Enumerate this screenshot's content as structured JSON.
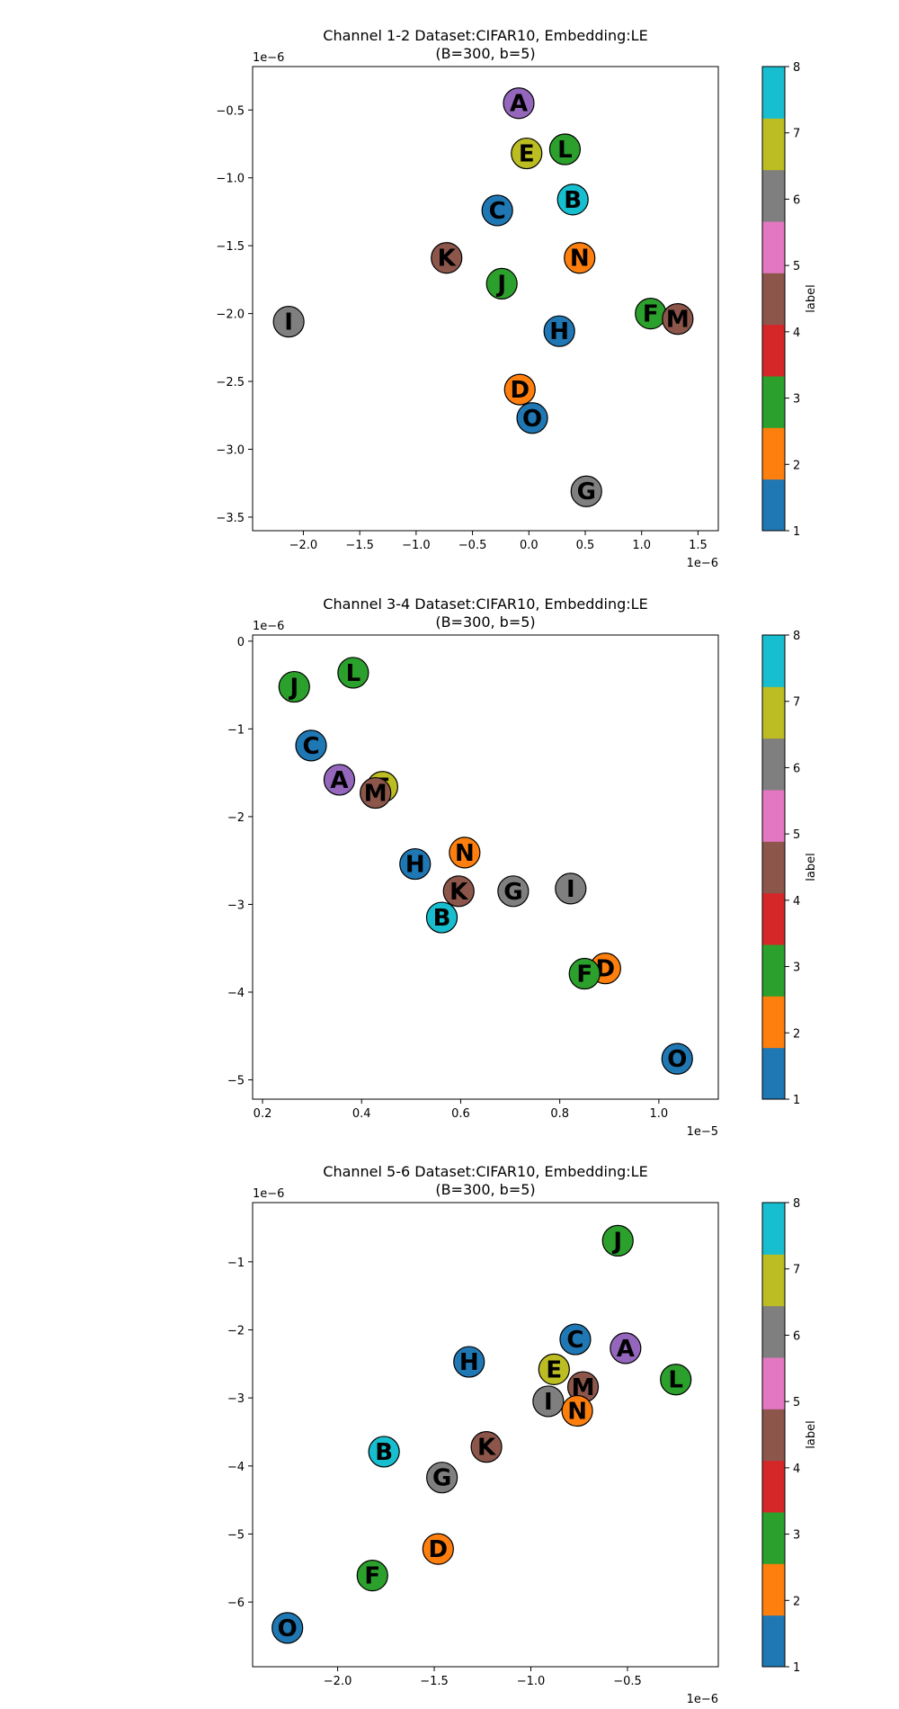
{
  "colorbar": {
    "label": "label",
    "ticks": [
      "1",
      "2",
      "3",
      "4",
      "5",
      "6",
      "7",
      "8"
    ],
    "colors": [
      "#1f77b4",
      "#ff7f0e",
      "#2ca02c",
      "#d62728",
      "#8c564b",
      "#e377c2",
      "#7f7f7f",
      "#bcbd22",
      "#17becf"
    ]
  },
  "chart_data": [
    {
      "type": "scatter",
      "title": "Channel 1-2 Dataset:CIFAR10, Embedding:LE",
      "subtitle": "(B=300, b=5)",
      "xlabel": "",
      "ylabel": "",
      "x_offset_text": "1e−6",
      "y_offset_text": "1e−6",
      "xlim": [
        -2.45,
        1.68
      ],
      "ylim": [
        -3.6,
        -0.18
      ],
      "xticks": [
        -2.0,
        -1.5,
        -1.0,
        -0.5,
        0.0,
        0.5,
        1.0,
        1.5
      ],
      "xtick_labels": [
        "−2.0",
        "−1.5",
        "−1.0",
        "−0.5",
        "0.0",
        "0.5",
        "1.0",
        "1.5"
      ],
      "yticks": [
        -0.5,
        -1.0,
        -1.5,
        -2.0,
        -2.5,
        -3.0,
        -3.5
      ],
      "ytick_labels": [
        "−0.5",
        "−1.0",
        "−1.5",
        "−2.0",
        "−2.5",
        "−3.0",
        "−3.5"
      ],
      "grid": false,
      "points": [
        {
          "label": "A",
          "x": -0.09,
          "y": -0.45,
          "color": "#9467bd"
        },
        {
          "label": "E",
          "x": -0.02,
          "y": -0.82,
          "color": "#bcbd22"
        },
        {
          "label": "L",
          "x": 0.32,
          "y": -0.79,
          "color": "#2ca02c"
        },
        {
          "label": "B",
          "x": 0.39,
          "y": -1.16,
          "color": "#17becf"
        },
        {
          "label": "C",
          "x": -0.28,
          "y": -1.24,
          "color": "#1f77b4"
        },
        {
          "label": "K",
          "x": -0.73,
          "y": -1.59,
          "color": "#8c564b"
        },
        {
          "label": "N",
          "x": 0.45,
          "y": -1.59,
          "color": "#ff7f0e"
        },
        {
          "label": "J",
          "x": -0.24,
          "y": -1.78,
          "color": "#2ca02c"
        },
        {
          "label": "F",
          "x": 1.08,
          "y": -2.0,
          "color": "#2ca02c"
        },
        {
          "label": "M",
          "x": 1.32,
          "y": -2.04,
          "color": "#8c564b"
        },
        {
          "label": "I",
          "x": -2.13,
          "y": -2.06,
          "color": "#7f7f7f"
        },
        {
          "label": "H",
          "x": 0.27,
          "y": -2.13,
          "color": "#1f77b4"
        },
        {
          "label": "D",
          "x": -0.08,
          "y": -2.56,
          "color": "#ff7f0e"
        },
        {
          "label": "O",
          "x": 0.03,
          "y": -2.77,
          "color": "#1f77b4"
        },
        {
          "label": "G",
          "x": 0.51,
          "y": -3.31,
          "color": "#7f7f7f"
        }
      ]
    },
    {
      "type": "scatter",
      "title": "Channel 3-4 Dataset:CIFAR10, Embedding:LE",
      "subtitle": "(B=300, b=5)",
      "xlabel": "",
      "ylabel": "",
      "x_offset_text": "1e−5",
      "y_offset_text": "1e−6",
      "xlim": [
        0.18,
        1.12
      ],
      "ylim": [
        -5.22,
        0.07
      ],
      "xticks": [
        0.2,
        0.4,
        0.6,
        0.8,
        1.0
      ],
      "xtick_labels": [
        "0.2",
        "0.4",
        "0.6",
        "0.8",
        "1.0"
      ],
      "yticks": [
        0,
        -1,
        -2,
        -3,
        -4,
        -5
      ],
      "ytick_labels": [
        "0",
        "−1",
        "−2",
        "−3",
        "−4",
        "−5"
      ],
      "grid": false,
      "points": [
        {
          "label": "L",
          "x": 0.383,
          "y": -0.36,
          "color": "#2ca02c"
        },
        {
          "label": "J",
          "x": 0.264,
          "y": -0.52,
          "color": "#2ca02c"
        },
        {
          "label": "C",
          "x": 0.298,
          "y": -1.19,
          "color": "#1f77b4"
        },
        {
          "label": "E",
          "x": 0.442,
          "y": -1.66,
          "color": "#bcbd22"
        },
        {
          "label": "A",
          "x": 0.355,
          "y": -1.58,
          "color": "#9467bd"
        },
        {
          "label": "M",
          "x": 0.428,
          "y": -1.73,
          "color": "#8c564b"
        },
        {
          "label": "N",
          "x": 0.608,
          "y": -2.41,
          "color": "#ff7f0e"
        },
        {
          "label": "H",
          "x": 0.508,
          "y": -2.54,
          "color": "#1f77b4"
        },
        {
          "label": "I",
          "x": 0.822,
          "y": -2.82,
          "color": "#7f7f7f"
        },
        {
          "label": "K",
          "x": 0.596,
          "y": -2.85,
          "color": "#8c564b"
        },
        {
          "label": "G",
          "x": 0.706,
          "y": -2.85,
          "color": "#7f7f7f"
        },
        {
          "label": "B",
          "x": 0.562,
          "y": -3.15,
          "color": "#17becf"
        },
        {
          "label": "D",
          "x": 0.892,
          "y": -3.73,
          "color": "#ff7f0e"
        },
        {
          "label": "F",
          "x": 0.85,
          "y": -3.79,
          "color": "#2ca02c"
        },
        {
          "label": "O",
          "x": 1.037,
          "y": -4.76,
          "color": "#1f77b4"
        }
      ]
    },
    {
      "type": "scatter",
      "title": "Channel 5-6 Dataset:CIFAR10, Embedding:LE",
      "subtitle": "(B=300, b=5)",
      "xlabel": "",
      "ylabel": "",
      "x_offset_text": "1e−6",
      "y_offset_text": "1e−6",
      "xlim": [
        -2.44,
        -0.03
      ],
      "ylim": [
        -6.95,
        -0.13
      ],
      "xticks": [
        -2.0,
        -1.5,
        -1.0,
        -0.5
      ],
      "xtick_labels": [
        "−2.0",
        "−1.5",
        "−1.0",
        "−0.5"
      ],
      "yticks": [
        -1,
        -2,
        -3,
        -4,
        -5,
        -6
      ],
      "ytick_labels": [
        "−1",
        "−2",
        "−3",
        "−4",
        "−5",
        "−6"
      ],
      "grid": false,
      "points": [
        {
          "label": "J",
          "x": -0.55,
          "y": -0.69,
          "color": "#2ca02c"
        },
        {
          "label": "C",
          "x": -0.77,
          "y": -2.14,
          "color": "#1f77b4"
        },
        {
          "label": "A",
          "x": -0.51,
          "y": -2.27,
          "color": "#9467bd"
        },
        {
          "label": "H",
          "x": -1.32,
          "y": -2.47,
          "color": "#1f77b4"
        },
        {
          "label": "E",
          "x": -0.88,
          "y": -2.58,
          "color": "#bcbd22"
        },
        {
          "label": "L",
          "x": -0.25,
          "y": -2.73,
          "color": "#2ca02c"
        },
        {
          "label": "M",
          "x": -0.73,
          "y": -2.84,
          "color": "#8c564b"
        },
        {
          "label": "I",
          "x": -0.91,
          "y": -3.05,
          "color": "#7f7f7f"
        },
        {
          "label": "N",
          "x": -0.76,
          "y": -3.19,
          "color": "#ff7f0e"
        },
        {
          "label": "K",
          "x": -1.23,
          "y": -3.72,
          "color": "#8c564b"
        },
        {
          "label": "B",
          "x": -1.76,
          "y": -3.79,
          "color": "#17becf"
        },
        {
          "label": "G",
          "x": -1.46,
          "y": -4.17,
          "color": "#7f7f7f"
        },
        {
          "label": "D",
          "x": -1.48,
          "y": -5.22,
          "color": "#ff7f0e"
        },
        {
          "label": "F",
          "x": -1.82,
          "y": -5.61,
          "color": "#2ca02c"
        },
        {
          "label": "O",
          "x": -2.26,
          "y": -6.38,
          "color": "#1f77b4"
        }
      ]
    }
  ]
}
